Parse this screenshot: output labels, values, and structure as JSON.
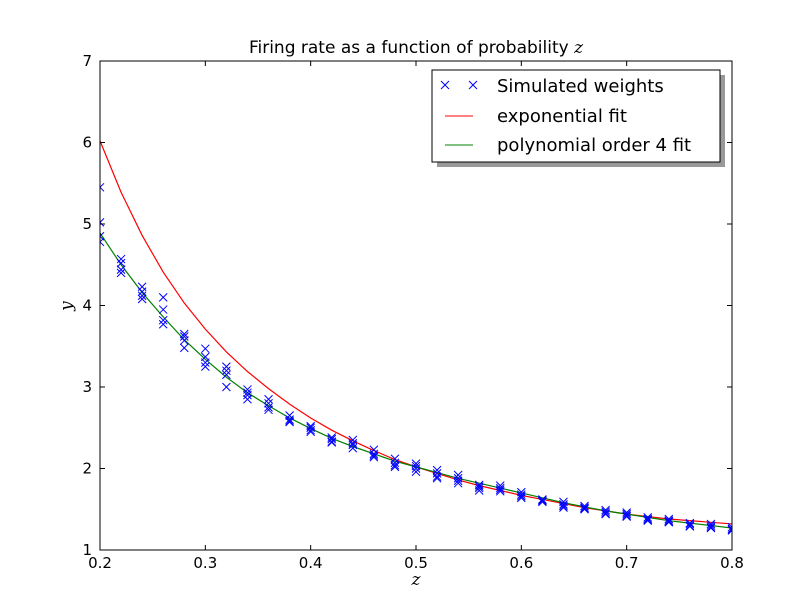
{
  "chart_data": {
    "type": "scatter",
    "title_text": "Firing rate as a function of probability ",
    "title_var": "z",
    "xlabel": "z",
    "ylabel": "y",
    "xlim": [
      0.2,
      0.8
    ],
    "ylim": [
      1,
      7
    ],
    "xticks": [
      "0.2",
      "0.3",
      "0.4",
      "0.5",
      "0.6",
      "0.7",
      "0.8"
    ],
    "yticks": [
      "1",
      "2",
      "3",
      "4",
      "5",
      "6",
      "7"
    ],
    "grid": false,
    "legend_position": "top-right",
    "series": [
      {
        "name": "Simulated weights",
        "kind": "scatter",
        "marker": "x",
        "color": "#0000ff",
        "points": [
          [
            0.2,
            5.45
          ],
          [
            0.2,
            5.02
          ],
          [
            0.2,
            4.85
          ],
          [
            0.2,
            4.78
          ],
          [
            0.22,
            4.57
          ],
          [
            0.22,
            4.52
          ],
          [
            0.22,
            4.44
          ],
          [
            0.22,
            4.4
          ],
          [
            0.24,
            4.23
          ],
          [
            0.24,
            4.17
          ],
          [
            0.24,
            4.12
          ],
          [
            0.24,
            4.08
          ],
          [
            0.26,
            4.1
          ],
          [
            0.26,
            3.95
          ],
          [
            0.26,
            3.82
          ],
          [
            0.26,
            3.77
          ],
          [
            0.28,
            3.65
          ],
          [
            0.28,
            3.62
          ],
          [
            0.28,
            3.57
          ],
          [
            0.28,
            3.48
          ],
          [
            0.3,
            3.47
          ],
          [
            0.3,
            3.37
          ],
          [
            0.3,
            3.3
          ],
          [
            0.3,
            3.25
          ],
          [
            0.32,
            3.25
          ],
          [
            0.32,
            3.2
          ],
          [
            0.32,
            3.15
          ],
          [
            0.32,
            3.0
          ],
          [
            0.34,
            2.97
          ],
          [
            0.34,
            2.93
          ],
          [
            0.34,
            2.9
          ],
          [
            0.34,
            2.85
          ],
          [
            0.36,
            2.85
          ],
          [
            0.36,
            2.8
          ],
          [
            0.36,
            2.75
          ],
          [
            0.36,
            2.72
          ],
          [
            0.38,
            2.65
          ],
          [
            0.38,
            2.6
          ],
          [
            0.38,
            2.58
          ],
          [
            0.38,
            2.57
          ],
          [
            0.4,
            2.52
          ],
          [
            0.4,
            2.5
          ],
          [
            0.4,
            2.47
          ],
          [
            0.4,
            2.45
          ],
          [
            0.42,
            2.38
          ],
          [
            0.42,
            2.36
          ],
          [
            0.42,
            2.33
          ],
          [
            0.42,
            2.32
          ],
          [
            0.44,
            2.35
          ],
          [
            0.44,
            2.31
          ],
          [
            0.44,
            2.29
          ],
          [
            0.44,
            2.25
          ],
          [
            0.46,
            2.23
          ],
          [
            0.46,
            2.18
          ],
          [
            0.46,
            2.16
          ],
          [
            0.46,
            2.14
          ],
          [
            0.48,
            2.12
          ],
          [
            0.48,
            2.07
          ],
          [
            0.48,
            2.04
          ],
          [
            0.48,
            2.02
          ],
          [
            0.5,
            2.06
          ],
          [
            0.5,
            2.03
          ],
          [
            0.5,
            2.0
          ],
          [
            0.5,
            1.96
          ],
          [
            0.52,
            1.98
          ],
          [
            0.52,
            1.94
          ],
          [
            0.52,
            1.9
          ],
          [
            0.52,
            1.88
          ],
          [
            0.54,
            1.92
          ],
          [
            0.54,
            1.88
          ],
          [
            0.54,
            1.85
          ],
          [
            0.54,
            1.82
          ],
          [
            0.56,
            1.8
          ],
          [
            0.56,
            1.78
          ],
          [
            0.56,
            1.76
          ],
          [
            0.56,
            1.73
          ],
          [
            0.58,
            1.79
          ],
          [
            0.58,
            1.76
          ],
          [
            0.58,
            1.74
          ],
          [
            0.58,
            1.72
          ],
          [
            0.6,
            1.71
          ],
          [
            0.6,
            1.68
          ],
          [
            0.6,
            1.66
          ],
          [
            0.6,
            1.64
          ],
          [
            0.62,
            1.62
          ],
          [
            0.62,
            1.61
          ],
          [
            0.62,
            1.6
          ],
          [
            0.62,
            1.59
          ],
          [
            0.64,
            1.59
          ],
          [
            0.64,
            1.56
          ],
          [
            0.64,
            1.54
          ],
          [
            0.64,
            1.52
          ],
          [
            0.66,
            1.54
          ],
          [
            0.66,
            1.52
          ],
          [
            0.66,
            1.51
          ],
          [
            0.66,
            1.5
          ],
          [
            0.68,
            1.49
          ],
          [
            0.68,
            1.47
          ],
          [
            0.68,
            1.45
          ],
          [
            0.68,
            1.44
          ],
          [
            0.7,
            1.46
          ],
          [
            0.7,
            1.44
          ],
          [
            0.7,
            1.42
          ],
          [
            0.7,
            1.41
          ],
          [
            0.72,
            1.4
          ],
          [
            0.72,
            1.38
          ],
          [
            0.72,
            1.37
          ],
          [
            0.72,
            1.36
          ],
          [
            0.74,
            1.38
          ],
          [
            0.74,
            1.36
          ],
          [
            0.74,
            1.35
          ],
          [
            0.74,
            1.34
          ],
          [
            0.76,
            1.33
          ],
          [
            0.76,
            1.32
          ],
          [
            0.76,
            1.3
          ],
          [
            0.76,
            1.29
          ],
          [
            0.78,
            1.32
          ],
          [
            0.78,
            1.3
          ],
          [
            0.78,
            1.28
          ],
          [
            0.78,
            1.27
          ],
          [
            0.8,
            1.28
          ],
          [
            0.8,
            1.26
          ],
          [
            0.8,
            1.25
          ],
          [
            0.8,
            1.24
          ]
        ]
      },
      {
        "name": "exponential fit",
        "kind": "line",
        "color": "#ff0000",
        "points": [
          [
            0.2,
            6.02
          ],
          [
            0.22,
            5.39
          ],
          [
            0.24,
            4.86
          ],
          [
            0.26,
            4.41
          ],
          [
            0.28,
            4.03
          ],
          [
            0.3,
            3.71
          ],
          [
            0.32,
            3.43
          ],
          [
            0.34,
            3.19
          ],
          [
            0.36,
            2.98
          ],
          [
            0.38,
            2.79
          ],
          [
            0.4,
            2.62
          ],
          [
            0.42,
            2.47
          ],
          [
            0.44,
            2.34
          ],
          [
            0.46,
            2.22
          ],
          [
            0.48,
            2.11
          ],
          [
            0.5,
            2.02
          ],
          [
            0.52,
            1.94
          ],
          [
            0.54,
            1.86
          ],
          [
            0.56,
            1.79
          ],
          [
            0.58,
            1.73
          ],
          [
            0.6,
            1.67
          ],
          [
            0.62,
            1.62
          ],
          [
            0.64,
            1.57
          ],
          [
            0.66,
            1.52
          ],
          [
            0.68,
            1.48
          ],
          [
            0.7,
            1.44
          ],
          [
            0.72,
            1.41
          ],
          [
            0.74,
            1.38
          ],
          [
            0.76,
            1.36
          ],
          [
            0.78,
            1.34
          ],
          [
            0.8,
            1.32
          ]
        ]
      },
      {
        "name": "polynomial order 4 fit",
        "kind": "line",
        "color": "#008000",
        "points": [
          [
            0.2,
            4.89
          ],
          [
            0.22,
            4.5
          ],
          [
            0.24,
            4.16
          ],
          [
            0.26,
            3.86
          ],
          [
            0.28,
            3.58
          ],
          [
            0.3,
            3.34
          ],
          [
            0.32,
            3.12
          ],
          [
            0.34,
            2.93
          ],
          [
            0.36,
            2.77
          ],
          [
            0.38,
            2.62
          ],
          [
            0.4,
            2.49
          ],
          [
            0.42,
            2.37
          ],
          [
            0.44,
            2.27
          ],
          [
            0.46,
            2.18
          ],
          [
            0.48,
            2.09
          ],
          [
            0.5,
            2.02
          ],
          [
            0.52,
            1.95
          ],
          [
            0.54,
            1.88
          ],
          [
            0.56,
            1.82
          ],
          [
            0.58,
            1.76
          ],
          [
            0.6,
            1.7
          ],
          [
            0.62,
            1.64
          ],
          [
            0.64,
            1.58
          ],
          [
            0.66,
            1.53
          ],
          [
            0.68,
            1.48
          ],
          [
            0.7,
            1.44
          ],
          [
            0.72,
            1.4
          ],
          [
            0.74,
            1.36
          ],
          [
            0.76,
            1.33
          ],
          [
            0.78,
            1.3
          ],
          [
            0.8,
            1.27
          ]
        ]
      }
    ]
  }
}
